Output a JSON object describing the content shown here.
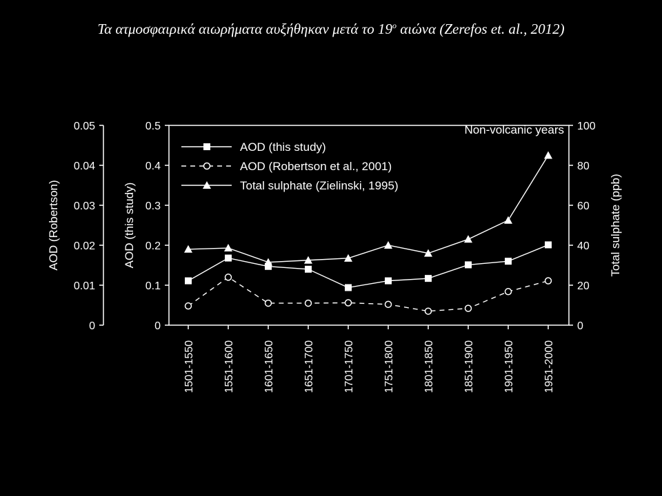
{
  "slide": {
    "title_main": "Τα ατμοσφαιρικά αιωρήματα αυξήθηκαν μετά το 19",
    "title_sup": "ο",
    "title_tail": " αιώνα (Zerefos et. al., 2012)"
  },
  "chart_data": {
    "type": "line",
    "title": "Non-volcanic years",
    "categories": [
      "1501-1550",
      "1551-1600",
      "1601-1650",
      "1651-1700",
      "1701-1750",
      "1751-1800",
      "1801-1850",
      "1851-1900",
      "1901-1950",
      "1951-2000"
    ],
    "series": [
      {
        "name": "AOD (this study)",
        "axis": "AOD (this study)",
        "marker": "square",
        "line": "solid",
        "values": [
          0.111,
          0.168,
          0.147,
          0.14,
          0.094,
          0.111,
          0.117,
          0.151,
          0.16,
          0.201
        ]
      },
      {
        "name": "AOD (Robertson et al., 2001)",
        "axis": "AOD (Robertson)",
        "marker": "open-circle",
        "line": "dashed",
        "values": [
          0.0048,
          0.012,
          0.0055,
          0.0055,
          0.0056,
          0.0052,
          0.0035,
          0.0042,
          0.0084,
          0.0111
        ]
      },
      {
        "name": "Total sulphate (Zielinski, 1995)",
        "axis": "Total sulphate (ppb)",
        "marker": "triangle",
        "line": "solid",
        "values": [
          38,
          38.6,
          31.5,
          32.5,
          33.5,
          40,
          36,
          43,
          52.5,
          85
        ]
      }
    ],
    "axes": {
      "left_outer": {
        "label": "AOD (Robertson)",
        "ylim": [
          0,
          0.05
        ],
        "ticks": [
          "0",
          "0.01",
          "0.02",
          "0.03",
          "0.04",
          "0.05"
        ]
      },
      "left_inner": {
        "label": "AOD (this study)",
        "ylim": [
          0,
          0.5
        ],
        "ticks": [
          "0",
          "0.1",
          "0.2",
          "0.3",
          "0.4",
          "0.5"
        ]
      },
      "right": {
        "label": "Total sulphate (ppb)",
        "ylim": [
          0,
          100
        ],
        "ticks": [
          "0",
          "20",
          "40",
          "60",
          "80",
          "100"
        ]
      }
    },
    "grid": false,
    "legend_position": "top-left",
    "colors": {
      "background": "#000000",
      "foreground": "#ffffff"
    }
  }
}
